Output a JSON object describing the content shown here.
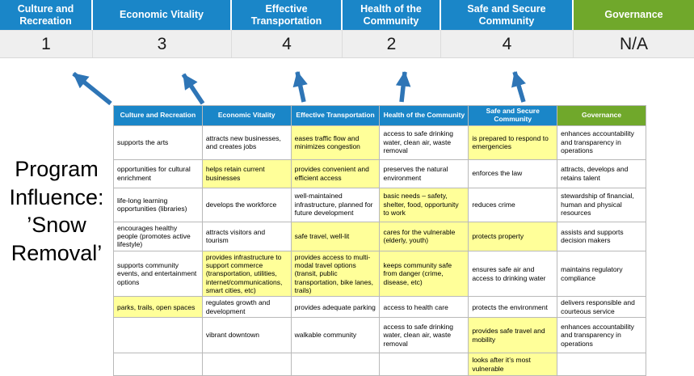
{
  "slide": {
    "title_line1": "Program Influence:",
    "title_line2": "’Snow Removal’"
  },
  "colors": {
    "blue_header": "#1A86C8",
    "green_header": "#70A82B",
    "highlight_yellow": "#FFFF99",
    "score_band_bg": "#EFEFEF",
    "arrow_blue": "#2E75B6"
  },
  "pillars": [
    {
      "label": "Culture and Recreation",
      "score": "1",
      "theme": "blue"
    },
    {
      "label": "Economic Vitality",
      "score": "3",
      "theme": "blue"
    },
    {
      "label": "Effective Transportation",
      "score": "4",
      "theme": "blue"
    },
    {
      "label": "Health of the Community",
      "score": "2",
      "theme": "blue"
    },
    {
      "label": "Safe and Secure Community",
      "score": "4",
      "theme": "blue"
    },
    {
      "label": "Governance",
      "score": "N/A",
      "theme": "green"
    }
  ],
  "matrix_rows": [
    [
      {
        "text": "supports the arts",
        "highlight": false
      },
      {
        "text": "attracts new businesses, and creates jobs",
        "highlight": false
      },
      {
        "text": "eases traffic flow and minimizes congestion",
        "highlight": true
      },
      {
        "text": "access to safe drinking water, clean air, waste removal",
        "highlight": false
      },
      {
        "text": "is prepared to respond to emergencies",
        "highlight": true
      },
      {
        "text": "enhances accountability and transparency in operations",
        "highlight": false
      }
    ],
    [
      {
        "text": "opportunities for cultural enrichment",
        "highlight": false
      },
      {
        "text": "helps retain current businesses",
        "highlight": true
      },
      {
        "text": "provides convenient and efficient access",
        "highlight": true
      },
      {
        "text": "preserves the natural environment",
        "highlight": false
      },
      {
        "text": "enforces the law",
        "highlight": false
      },
      {
        "text": "attracts, develops and retains talent",
        "highlight": false
      }
    ],
    [
      {
        "text": "life-long learning opportunities (libraries)",
        "highlight": false
      },
      {
        "text": "develops the workforce",
        "highlight": false
      },
      {
        "text": "well-maintained infrastructure, planned for future development",
        "highlight": false
      },
      {
        "text": "basic needs – safety, shelter, food, opportunity to work",
        "highlight": true
      },
      {
        "text": "reduces crime",
        "highlight": false
      },
      {
        "text": "stewardship of financial, human and physical resources",
        "highlight": false
      }
    ],
    [
      {
        "text": "encourages healthy people (promotes active lifestyle)",
        "highlight": false
      },
      {
        "text": "attracts visitors and tourism",
        "highlight": false
      },
      {
        "text": "safe travel, well-lit",
        "highlight": true
      },
      {
        "text": "cares for the vulnerable (elderly, youth)",
        "highlight": true
      },
      {
        "text": "protects property",
        "highlight": true
      },
      {
        "text": "assists and supports decision makers",
        "highlight": false
      }
    ],
    [
      {
        "text": "supports community events, and entertainment options",
        "highlight": false
      },
      {
        "text": "provides infrastructure to support commerce (transportation, utilities, internet/communications, smart cities, etc)",
        "highlight": true
      },
      {
        "text": "provides access to multi-modal travel options (transit, public transportation, bike lanes, trails)",
        "highlight": true
      },
      {
        "text": "keeps community safe from danger (crime, disease, etc)",
        "highlight": true
      },
      {
        "text": "ensures safe air and access to drinking water",
        "highlight": false
      },
      {
        "text": "maintains regulatory compliance",
        "highlight": false
      }
    ],
    [
      {
        "text": "parks, trails, open spaces",
        "highlight": true
      },
      {
        "text": "regulates growth and development",
        "highlight": false
      },
      {
        "text": "provides adequate parking",
        "highlight": false
      },
      {
        "text": "access to health care",
        "highlight": false
      },
      {
        "text": "protects the environment",
        "highlight": false
      },
      {
        "text": "delivers responsible and courteous service",
        "highlight": false
      }
    ],
    [
      {
        "text": "",
        "highlight": false
      },
      {
        "text": "vibrant downtown",
        "highlight": false
      },
      {
        "text": "walkable community",
        "highlight": false
      },
      {
        "text": "access to safe drinking water, clean air, waste removal",
        "highlight": false
      },
      {
        "text": "provides safe travel and mobility",
        "highlight": true
      },
      {
        "text": "enhances accountability and transparency in operations",
        "highlight": false
      }
    ],
    [
      {
        "text": "",
        "highlight": false
      },
      {
        "text": "",
        "highlight": false
      },
      {
        "text": "",
        "highlight": false
      },
      {
        "text": "",
        "highlight": false
      },
      {
        "text": "looks after it’s most vulnerable",
        "highlight": true
      },
      {
        "text": "",
        "highlight": false
      }
    ]
  ]
}
